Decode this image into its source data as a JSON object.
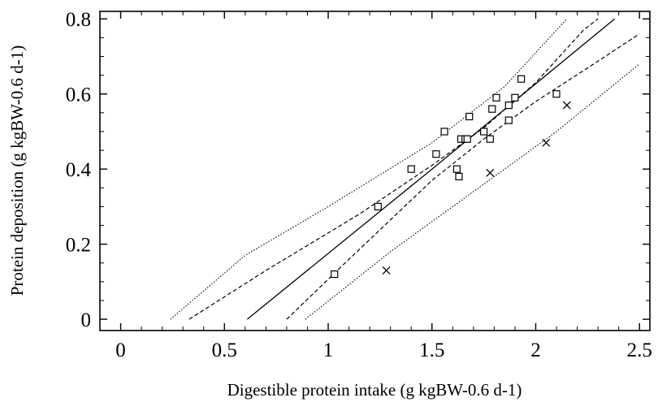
{
  "chart_data": {
    "type": "scatter",
    "xlabel": "Digestible protein intake (g kgBW-0.6 d-1)",
    "ylabel": "Protein deposition (g kgBW-0.6 d-1)",
    "xlim": [
      -0.1,
      2.55
    ],
    "ylim": [
      -0.03,
      0.82
    ],
    "x_ticks": [
      0,
      0.5,
      1,
      1.5,
      2,
      2.5
    ],
    "x_tick_labels": [
      "0",
      "0.5",
      "1",
      "1.5",
      "2",
      "2.5"
    ],
    "y_ticks": [
      0,
      0.2,
      0.4,
      0.6,
      0.8
    ],
    "y_tick_labels": [
      "0",
      "0.2",
      "0.4",
      "0.6",
      "0.8"
    ],
    "grid": false,
    "series": [
      {
        "marker": "square",
        "points": [
          [
            1.03,
            0.12
          ],
          [
            1.24,
            0.3
          ],
          [
            1.4,
            0.4
          ],
          [
            1.52,
            0.44
          ],
          [
            1.56,
            0.5
          ],
          [
            1.62,
            0.4
          ],
          [
            1.63,
            0.38
          ],
          [
            1.64,
            0.48
          ],
          [
            1.66,
            0.48
          ],
          [
            1.67,
            0.48
          ],
          [
            1.68,
            0.54
          ],
          [
            1.75,
            0.5
          ],
          [
            1.78,
            0.48
          ],
          [
            1.79,
            0.56
          ],
          [
            1.81,
            0.59
          ],
          [
            1.87,
            0.53
          ],
          [
            1.87,
            0.57
          ],
          [
            1.9,
            0.59
          ],
          [
            1.93,
            0.64
          ],
          [
            2.1,
            0.6
          ]
        ]
      },
      {
        "marker": "x",
        "points": [
          [
            1.28,
            0.13
          ],
          [
            1.78,
            0.39
          ],
          [
            2.05,
            0.47
          ],
          [
            2.15,
            0.57
          ]
        ]
      }
    ],
    "lines": [
      {
        "style": "solid",
        "points": [
          [
            0.61,
            0.0
          ],
          [
            1.5,
            0.4
          ],
          [
            2.38,
            0.8
          ]
        ]
      },
      {
        "style": "dashed",
        "points": [
          [
            0.33,
            0.0
          ],
          [
            0.7,
            0.13
          ],
          [
            1.15,
            0.28
          ],
          [
            1.5,
            0.41
          ],
          [
            1.75,
            0.51
          ],
          [
            2.0,
            0.63
          ],
          [
            2.23,
            0.77
          ],
          [
            2.3,
            0.8
          ]
        ]
      },
      {
        "style": "dashed",
        "points": [
          [
            0.8,
            0.0
          ],
          [
            1.1,
            0.16
          ],
          [
            1.5,
            0.37
          ],
          [
            1.75,
            0.48
          ],
          [
            2.0,
            0.58
          ],
          [
            2.28,
            0.68
          ],
          [
            2.5,
            0.76
          ]
        ]
      },
      {
        "style": "dotted",
        "points": [
          [
            0.24,
            0.0
          ],
          [
            0.6,
            0.17
          ],
          [
            1.0,
            0.3
          ],
          [
            1.5,
            0.47
          ],
          [
            1.85,
            0.62
          ],
          [
            2.15,
            0.8
          ]
        ]
      },
      {
        "style": "dotted",
        "points": [
          [
            0.89,
            0.0
          ],
          [
            1.3,
            0.18
          ],
          [
            1.7,
            0.34
          ],
          [
            2.1,
            0.5
          ],
          [
            2.5,
            0.68
          ]
        ]
      }
    ]
  }
}
